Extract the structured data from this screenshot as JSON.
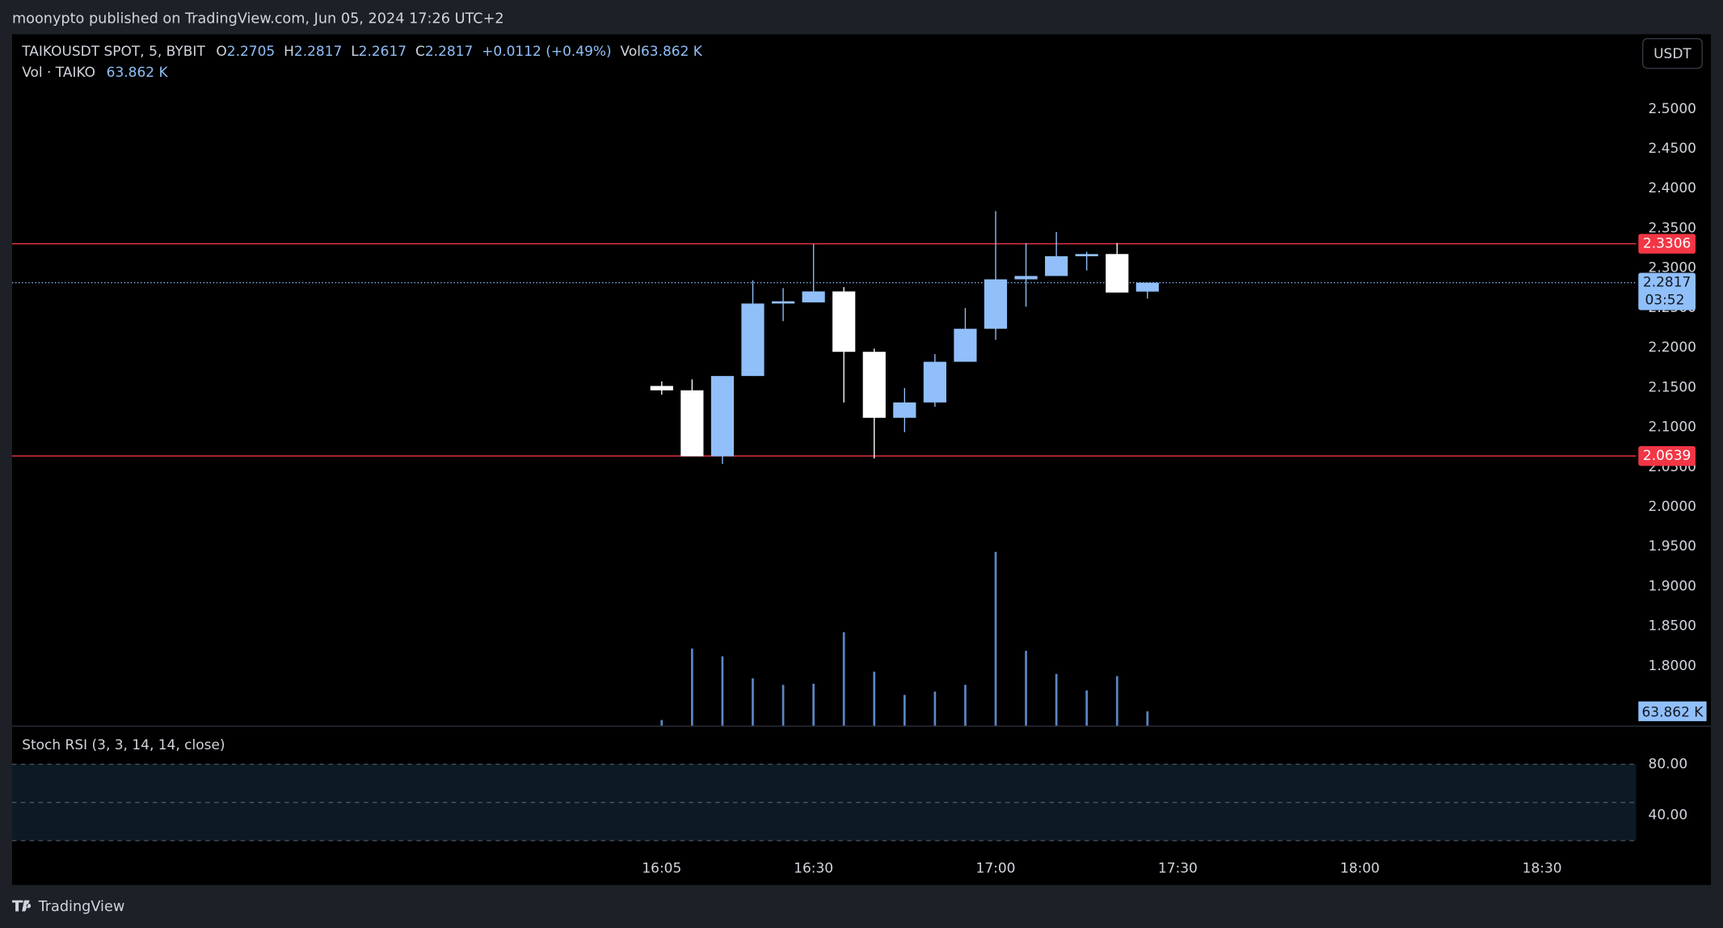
{
  "header": {
    "published": "moonypto published on TradingView.com, Jun 05, 2024 17:26 UTC+2",
    "footer": "TradingView"
  },
  "chart_data": {
    "type": "candlestick",
    "legend": {
      "symbol": "TAIKOUSDT SPOT, 5, BYBIT",
      "o": "O",
      "o_val": "2.2705",
      "h": "H",
      "h_val": "2.2817",
      "l": "L",
      "l_val": "2.2617",
      "c": "C",
      "c_val": "2.2817",
      "change": "+0.0112 (+0.49%)",
      "vol": "Vol",
      "vol_val": "63.862 K",
      "vol_title": "Vol · TAIKO",
      "vol_title_val": "63.862 K"
    },
    "currency": "USDT",
    "x": [
      0,
      1,
      2,
      3,
      4,
      5,
      6,
      7,
      8,
      9,
      10,
      11,
      12,
      13,
      14,
      15,
      16
    ],
    "xlim": [
      -21.4,
      32.1
    ],
    "xticks": [
      {
        "value": 0,
        "label": "16:05"
      },
      {
        "value": 5,
        "label": "16:30"
      },
      {
        "value": 11,
        "label": "17:00"
      },
      {
        "value": 17,
        "label": "17:30"
      },
      {
        "value": 23,
        "label": "18:00"
      },
      {
        "value": 29,
        "label": "18:30"
      }
    ],
    "open": [
      2.1519,
      2.1464,
      2.0635,
      2.1644,
      2.2555,
      2.2569,
      2.2707,
      2.1948,
      2.1119,
      2.1312,
      2.1823,
      2.2238,
      2.2859,
      2.2901,
      2.3149,
      2.3177,
      2.2705
    ],
    "high": [
      2.1575,
      2.1602,
      2.1644,
      2.2845,
      2.2749,
      2.3301,
      2.2762,
      2.1989,
      2.1492,
      2.192,
      2.25,
      2.3715,
      2.3315,
      2.3453,
      2.3205,
      2.3315,
      2.2817
    ],
    "low": [
      2.1409,
      2.0635,
      2.0539,
      2.1644,
      2.2334,
      2.2569,
      2.1312,
      2.0608,
      2.0939,
      2.1257,
      2.1823,
      2.2099,
      2.2514,
      2.2901,
      2.297,
      2.2693,
      2.2617
    ],
    "close": [
      2.1464,
      2.0635,
      2.1644,
      2.2555,
      2.2583,
      2.2707,
      2.1948,
      2.1119,
      2.1312,
      2.1823,
      2.2238,
      2.2859,
      2.2901,
      2.3149,
      2.3177,
      2.2693,
      2.2817
    ],
    "up_color": "#90bff9",
    "down_color": "#ffffff",
    "ylim": [
      1.7251,
      2.5939
    ],
    "yticks": [
      {
        "value": 2.5,
        "label": "2.5000"
      },
      {
        "value": 2.45,
        "label": "2.4500"
      },
      {
        "value": 2.4,
        "label": "2.4000"
      },
      {
        "value": 2.35,
        "label": "2.3500"
      },
      {
        "value": 2.3,
        "label": "2.3000"
      },
      {
        "value": 2.25,
        "label": "2.2500"
      },
      {
        "value": 2.2,
        "label": "2.2000"
      },
      {
        "value": 2.15,
        "label": "2.1500"
      },
      {
        "value": 2.1,
        "label": "2.1000"
      },
      {
        "value": 2.05,
        "label": "2.0500"
      },
      {
        "value": 2.0,
        "label": "2.0000"
      },
      {
        "value": 1.95,
        "label": "1.9500"
      },
      {
        "value": 1.9,
        "label": "1.9000"
      },
      {
        "value": 1.85,
        "label": "1.8500"
      },
      {
        "value": 1.8,
        "label": "1.8000"
      }
    ],
    "hlines": [
      {
        "value": 2.3306,
        "color": "#f23645"
      },
      {
        "value": 2.0639,
        "color": "#f23645"
      }
    ],
    "last_price": 2.2817,
    "countdown": "03:52",
    "volume": [
      25,
      344,
      309,
      211,
      182,
      187,
      417,
      241,
      137,
      152,
      182,
      776,
      334,
      231,
      157,
      221,
      63.862
    ],
    "volume_color": "#5b86c5",
    "volume_ylim": [
      0,
      982
    ],
    "volume_last_label": "63.862 K",
    "stoch": {
      "title": "Stoch RSI (3, 3, 14, 14, close)",
      "ylim": [
        -14.8,
        110.4
      ],
      "yticks": [
        {
          "value": 80,
          "label": "80.00"
        },
        {
          "value": 40,
          "label": "40.00"
        }
      ],
      "levels": [
        80,
        50,
        20
      ]
    }
  }
}
